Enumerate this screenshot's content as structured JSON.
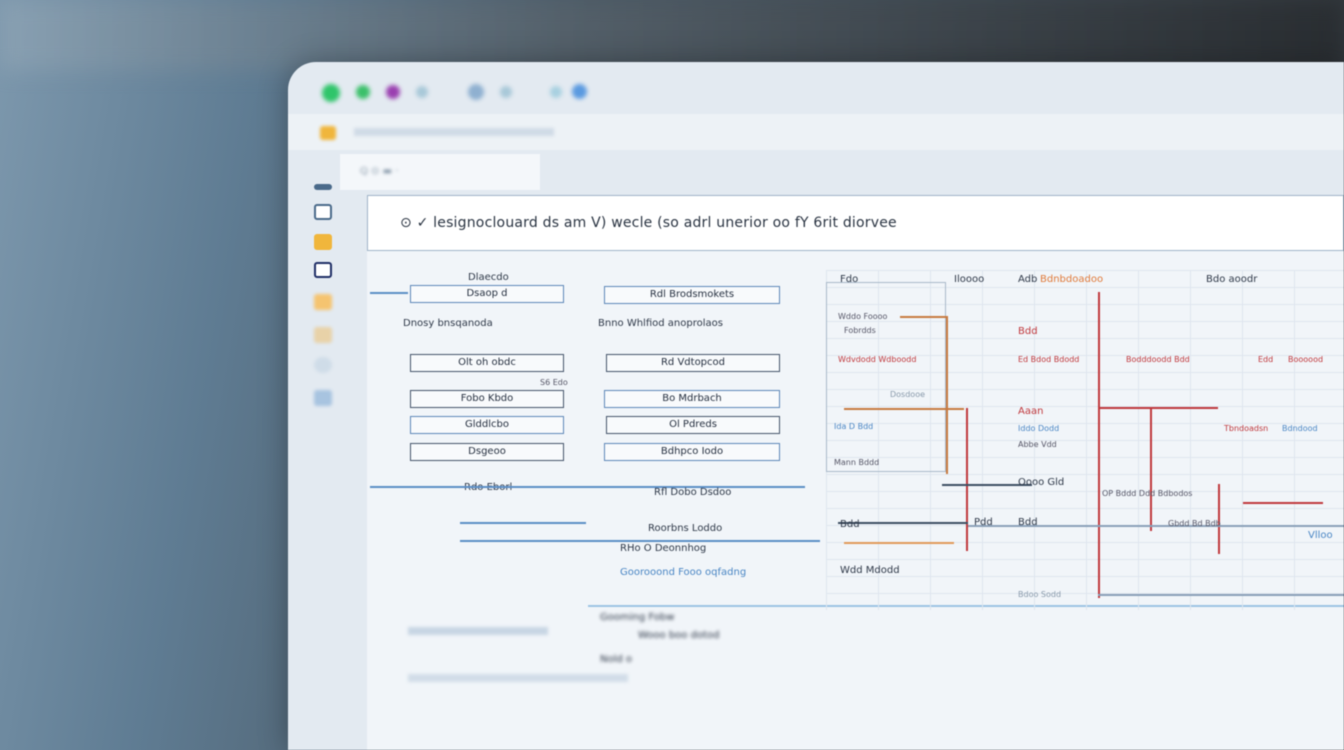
{
  "window": {
    "traffic_colors": [
      "#2fc56a",
      "#3bc06a",
      "#9a3fb0",
      "#a8c8d8",
      "#a8c8d8",
      "#8fb0d0",
      "#a8c8d8",
      "#a8d0e0",
      "#5a9ae0",
      "#a8c8d8"
    ]
  },
  "tab": {
    "label": "Q ⊙ ▬ ·"
  },
  "header": {
    "title": "⊙ ✓ lesignoclouard ds am V) wecle (so adrl unerior oo fY 6rit diorvee"
  },
  "left_flow": {
    "top_label": "Dlaecdo",
    "boxes": [
      "Dsaop d",
      "Olt oh obdc",
      "Fobo Kbdo",
      "Glddlcbo",
      "Dsgeoo"
    ],
    "caption": "Dnosy  bnsqanoda",
    "side_note": "S6 Edo",
    "bottom": "Rdo Eborl"
  },
  "right_flow": {
    "boxes": [
      "Rdl Brodsmokets",
      "Rd Vdtopcod",
      "Bo Mdrbach",
      "Ol Pdreds",
      "Bdhpco Iodo"
    ],
    "caption": "Bnno Whlfiod  anoprolaos",
    "bottom": "Rfl Dobo  Dsdoo",
    "notes": [
      "Roorbns Loddo",
      "RHo O Deonnhog",
      "Goorooond Fooo oqfadng"
    ]
  },
  "lower": {
    "items": [
      "Gooming Fobw",
      "Wooo boo dotod",
      "Nold o"
    ]
  },
  "grid": {
    "texts": [
      {
        "t": "Fdo",
        "c": ""
      },
      {
        "t": "Iloooo",
        "c": ""
      },
      {
        "t": "Adb",
        "c": ""
      },
      {
        "t": "Bdnbdoadoo",
        "c": "o"
      },
      {
        "t": "Bdo aoodr",
        "c": ""
      },
      {
        "t": "Wddo Foooo",
        "c": ""
      },
      {
        "t": "Fobrdds",
        "c": ""
      },
      {
        "t": "Wdvdodd Wdboodd",
        "c": "r"
      },
      {
        "t": "Bdd",
        "c": "r"
      },
      {
        "t": "Ed Bdod Bdodd",
        "c": "r"
      },
      {
        "t": "Bodddoodd Bdd",
        "c": "r"
      },
      {
        "t": "Edd",
        "c": "r"
      },
      {
        "t": "Boooood",
        "c": "r"
      },
      {
        "t": "Dosdooe",
        "c": "g"
      },
      {
        "t": "Aaan",
        "c": "r"
      },
      {
        "t": "Ida D Bdd",
        "c": "b"
      },
      {
        "t": "Iddo Dodd",
        "c": "b"
      },
      {
        "t": "Tbndoadsn",
        "c": "r"
      },
      {
        "t": "Bdndood",
        "c": "b"
      },
      {
        "t": "Abbe Vdd",
        "c": ""
      },
      {
        "t": "Mann Bddd",
        "c": ""
      },
      {
        "t": "Oooo Gld",
        "c": ""
      },
      {
        "t": "OP Bddd Ddd Bdbodos",
        "c": ""
      },
      {
        "t": "Bdd",
        "c": ""
      },
      {
        "t": "Pdd",
        "c": ""
      },
      {
        "t": "Bdd",
        "c": ""
      },
      {
        "t": "Gbdd Bd Bdb",
        "c": ""
      },
      {
        "t": "Wdd Mdodd",
        "c": ""
      },
      {
        "t": "Bdoo Sodd",
        "c": "g"
      },
      {
        "t": "Vlloo",
        "c": "b"
      }
    ]
  }
}
